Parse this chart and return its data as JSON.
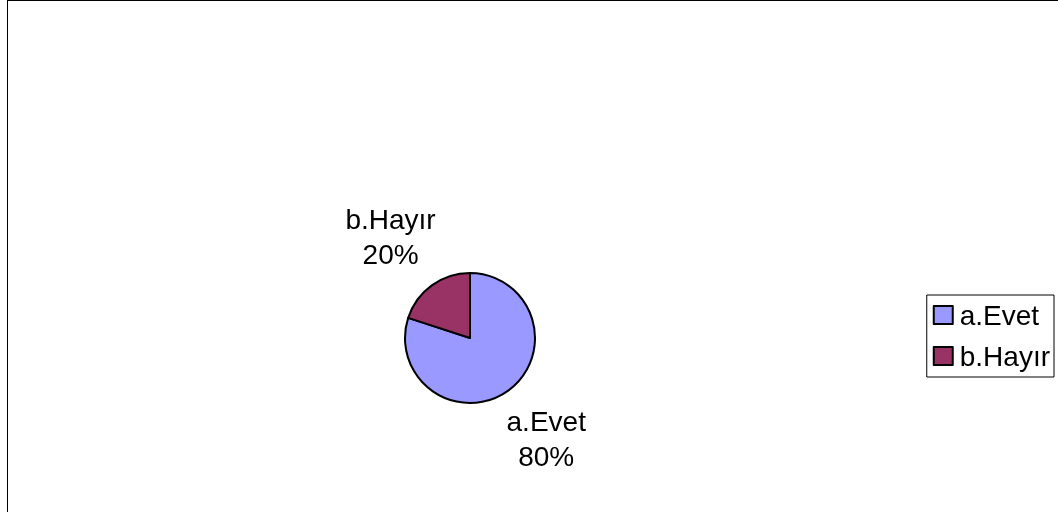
{
  "chart_data": {
    "type": "pie",
    "categories": [
      "a.Evet",
      "b.Hayır"
    ],
    "values": [
      80,
      20
    ],
    "value_labels": [
      "80%",
      "20%"
    ],
    "colors": [
      "#9999ff",
      "#993366"
    ],
    "legend": "right"
  }
}
